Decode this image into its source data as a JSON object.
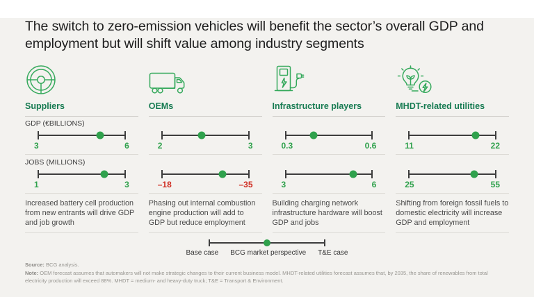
{
  "title": "The switch to zero-emission vehicles will benefit the sector’s overall GDP and employment but will shift value among industry segments",
  "metric_labels": {
    "gdp": "GDP (€BILLIONS)",
    "jobs": "JOBS (MILLIONS)"
  },
  "colors": {
    "background": "#f3f2ef",
    "accent_green": "#2fa14c",
    "header_green": "#177b52",
    "icon_green": "#35a95c",
    "negative_red": "#cf2c21",
    "slider_line": "#3d3d3d"
  },
  "columns": [
    {
      "icon": "steering-wheel-icon",
      "header": "Suppliers",
      "gdp": {
        "min": "3",
        "max": "6",
        "dot_position": 71,
        "negative": false
      },
      "jobs": {
        "min": "1",
        "max": "3",
        "dot_position": 76,
        "negative": false
      },
      "description": "Increased battery cell production from new entrants will drive GDP and job growth"
    },
    {
      "icon": "truck-icon",
      "header": "OEMs",
      "gdp": {
        "min": "2",
        "max": "3",
        "dot_position": 46,
        "negative": false
      },
      "jobs": {
        "min": "–18",
        "max": "–35",
        "dot_position": 70,
        "negative": true
      },
      "description": "Phasing out internal combustion engine production will add to GDP but reduce employment"
    },
    {
      "icon": "charging-station-icon",
      "header": "Infrastructure players",
      "gdp": {
        "min": "0.3",
        "max": "0.6",
        "dot_position": 33,
        "negative": false
      },
      "jobs": {
        "min": "3",
        "max": "6",
        "dot_position": 78,
        "negative": false
      },
      "description": "Building charging network infrastructure hardware will boost GDP and jobs"
    },
    {
      "icon": "bulb-energy-icon",
      "header": "MHDT-related utilities",
      "gdp": {
        "min": "11",
        "max": "22",
        "dot_position": 76,
        "negative": false
      },
      "jobs": {
        "min": "25",
        "max": "55",
        "dot_position": 75,
        "negative": false
      },
      "description": "Shifting from foreign fossil fuels to domestic electricity will increase GDP and employment"
    }
  ],
  "legend": {
    "left": "Base case",
    "center": "BCG market perspective",
    "right": "T&E case",
    "dot_position": 50
  },
  "footnote": {
    "source_label": "Source:",
    "source_text": " BCG analysis.",
    "note_label": "Note:",
    "note_text": " OEM forecast assumes that automakers will not make strategic changes to their current business model. MHDT-related utilities forecast assumes that, by 2035, the share of renewables from total electricity production will exceed 88%. MHDT = medium- and heavy-duty truck; T&E = Transport & Environment."
  },
  "chart_data": {
    "type": "scatter",
    "title": "The switch to zero-emission vehicles will benefit the sector’s overall GDP and employment but will shift value among industry segments",
    "categories": [
      "Suppliers",
      "OEMs",
      "Infrastructure players",
      "MHDT-related utilities"
    ],
    "series": [
      {
        "name": "GDP (€BILLIONS)",
        "ranges_base_to_TE": [
          [
            3,
            6
          ],
          [
            2,
            3
          ],
          [
            0.3,
            0.6
          ],
          [
            11,
            22
          ]
        ],
        "bcg_market_perspective": [
          5.1,
          2.5,
          0.4,
          19.4
        ]
      },
      {
        "name": "JOBS (MILLIONS)",
        "ranges_base_to_TE": [
          [
            1,
            3
          ],
          [
            -18,
            -35
          ],
          [
            3,
            6
          ],
          [
            25,
            55
          ]
        ],
        "bcg_market_perspective": [
          2.5,
          -30,
          5.3,
          47.5
        ]
      }
    ],
    "legend": [
      "Base case (left end)",
      "BCG market perspective (green dot)",
      "T&E case (right end)"
    ],
    "notes": "Negative JOBS values for OEMs shown in red"
  }
}
